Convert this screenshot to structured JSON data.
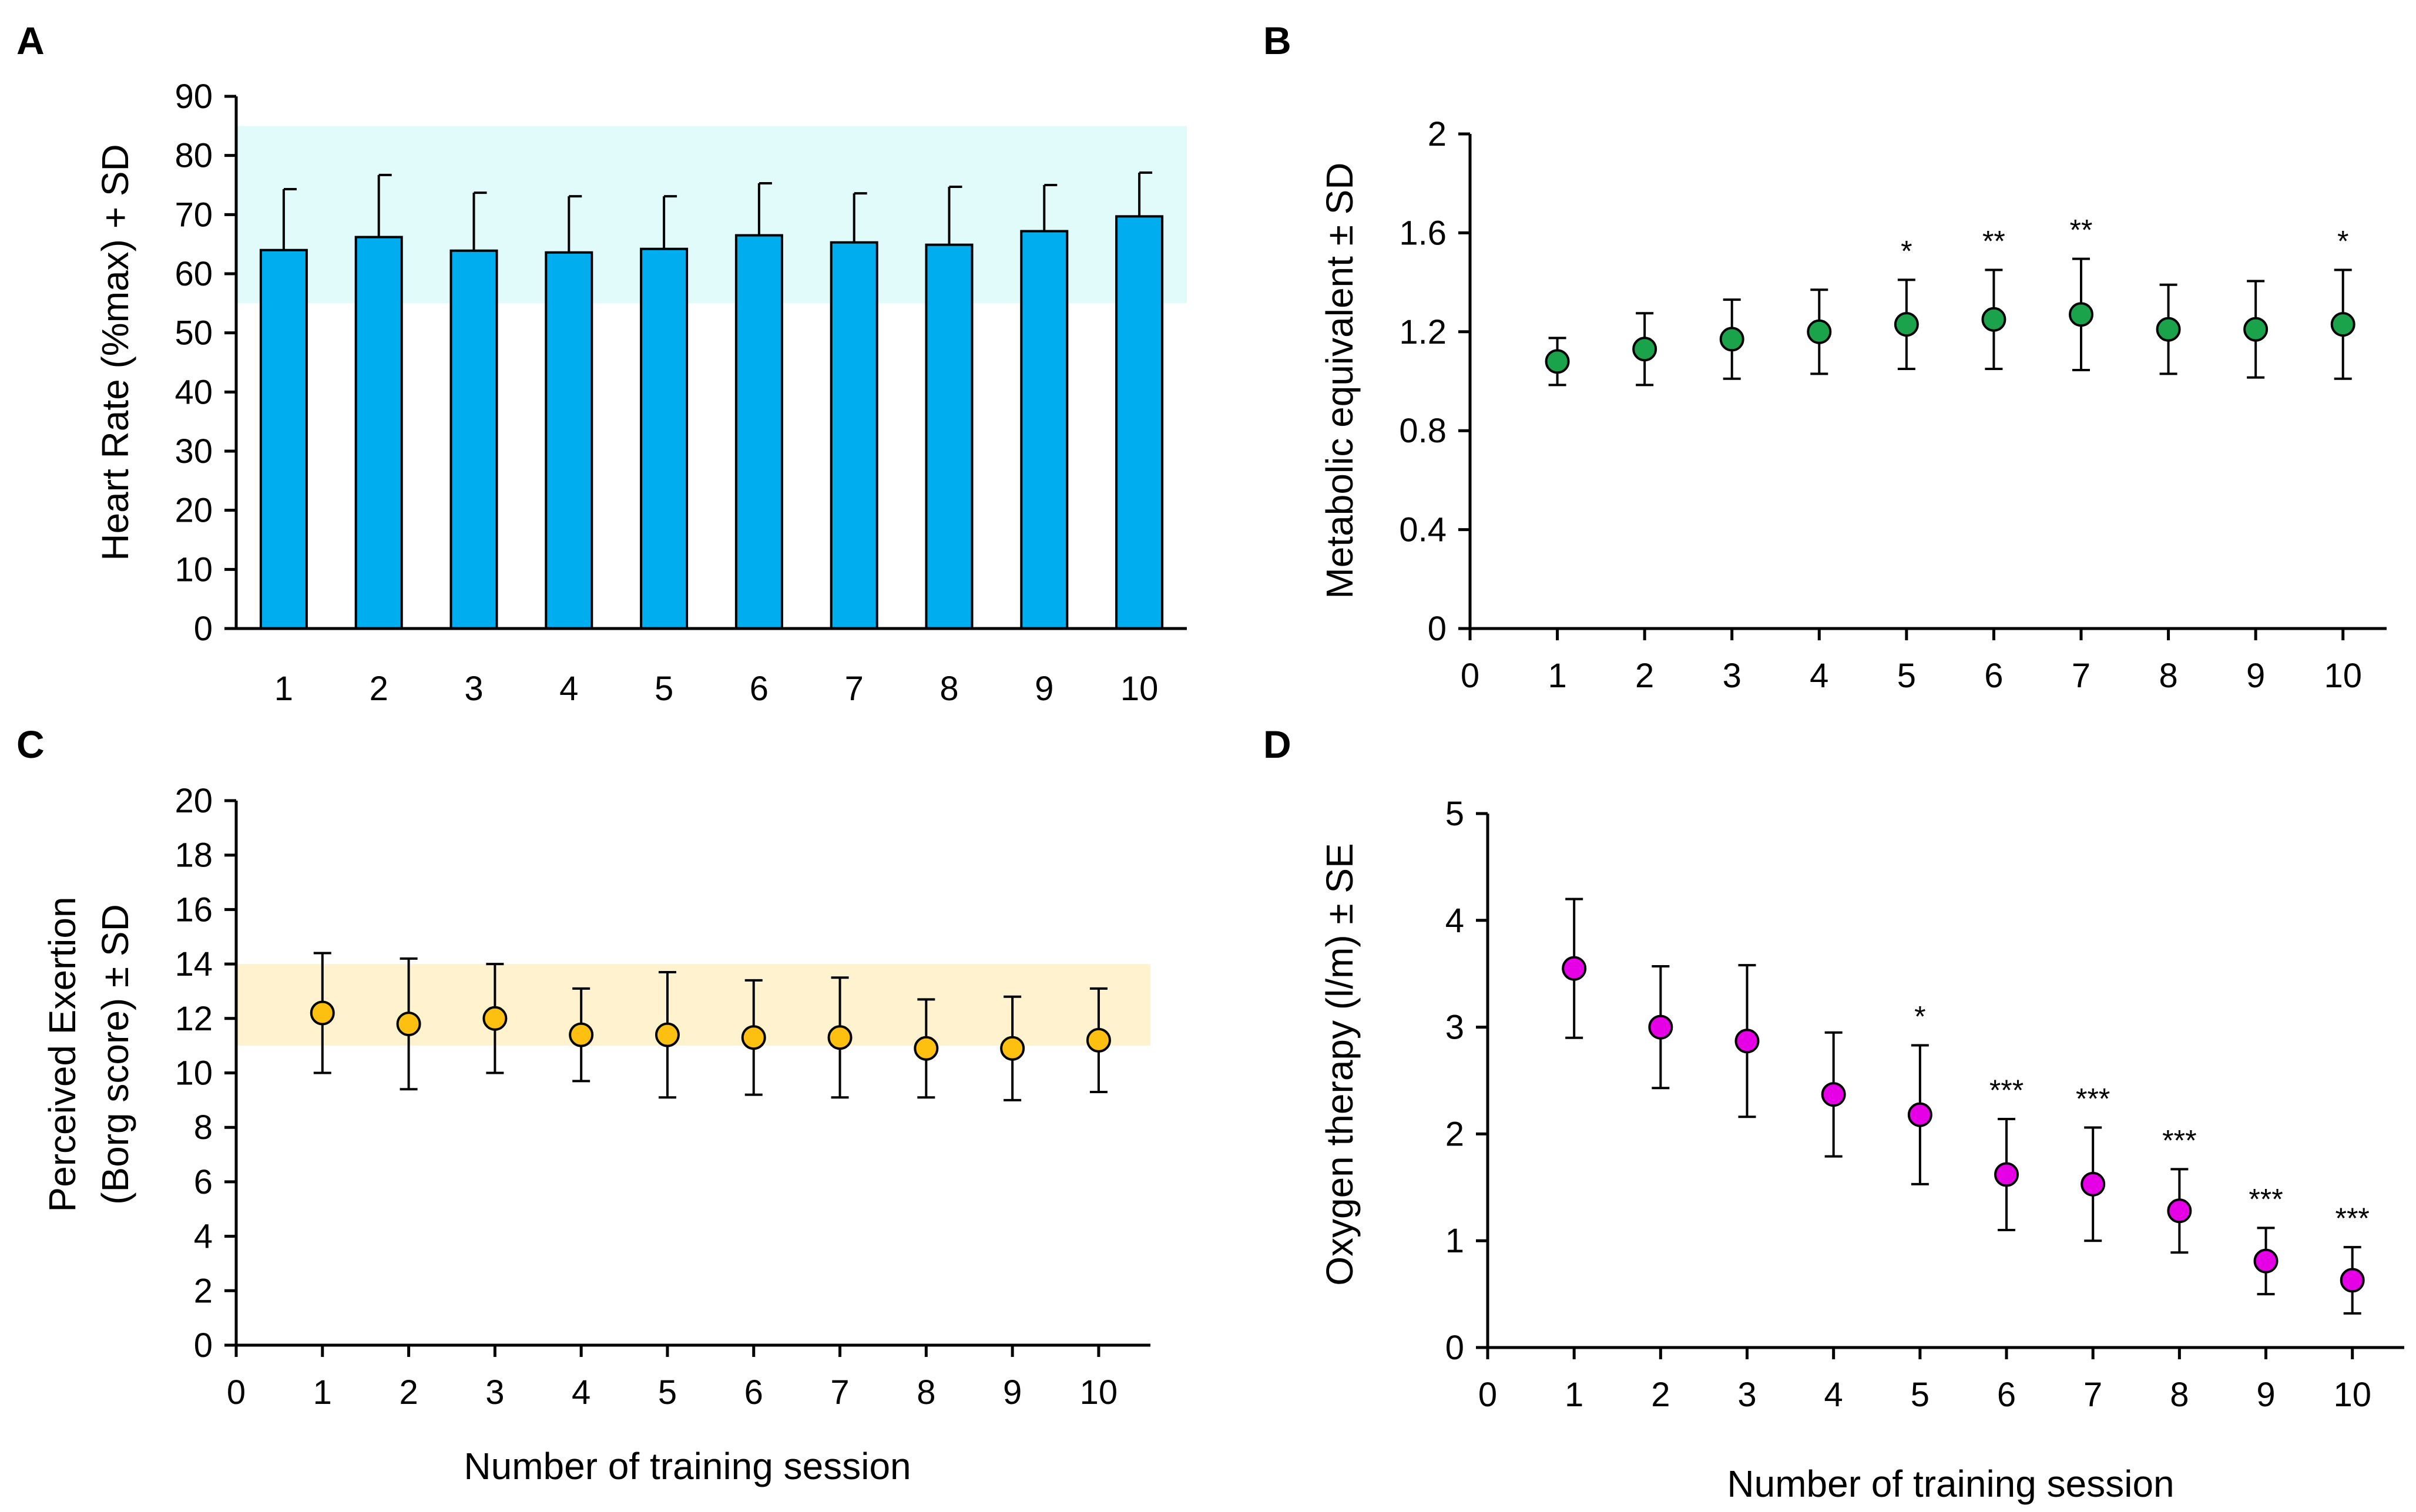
{
  "colors": {
    "bar_fill": "#00AEEF",
    "heart_band": "#E1FBFB",
    "met_marker": "#1AA34A",
    "borg_marker": "#FDC010",
    "borg_band": "#FEF2CF",
    "oxygen_marker": "#E600E6",
    "axis": "#000000"
  },
  "chart_data": [
    {
      "type": "bar",
      "panel": "A",
      "ylabel": "Heart Rate (%max) + SD",
      "xlabel": "",
      "categories": [
        "1",
        "2",
        "3",
        "4",
        "5",
        "6",
        "7",
        "8",
        "9",
        "10"
      ],
      "values": [
        64,
        66.2,
        63.9,
        63.6,
        64.2,
        66.5,
        65.3,
        64.9,
        67.2,
        69.7
      ],
      "error": [
        10.3,
        10.5,
        9.8,
        9.5,
        8.9,
        8.8,
        8.3,
        9.8,
        7.8,
        7.4
      ],
      "ylim": [
        0,
        90
      ],
      "yticks": [
        "0",
        "10",
        "20",
        "30",
        "40",
        "50",
        "60",
        "70",
        "80",
        "90"
      ],
      "band": [
        55,
        85
      ]
    },
    {
      "type": "scatter",
      "panel": "B",
      "ylabel": "Metabolic equivalent ± SD",
      "xlabel": "",
      "x": [
        1,
        2,
        3,
        4,
        5,
        6,
        7,
        8,
        9,
        10
      ],
      "values": [
        1.08,
        1.13,
        1.17,
        1.2,
        1.23,
        1.25,
        1.27,
        1.21,
        1.21,
        1.23
      ],
      "error": [
        0.095,
        0.145,
        0.16,
        0.17,
        0.18,
        0.2,
        0.225,
        0.18,
        0.195,
        0.22
      ],
      "ylim": [
        0,
        2
      ],
      "xlim": [
        0,
        10.5
      ],
      "yticks": [
        "0",
        "0.4",
        "0.8",
        "1.2",
        "1.6",
        "2"
      ],
      "xticks": [
        "0",
        "1",
        "2",
        "3",
        "4",
        "5",
        "6",
        "7",
        "8",
        "9",
        "10"
      ],
      "annotations": [
        "",
        "",
        "",
        "",
        "*",
        "**",
        "**",
        "",
        "",
        "*"
      ]
    },
    {
      "type": "scatter",
      "panel": "C",
      "ylabel_lines": [
        "Perceived Exertion",
        "(Borg score) ± SD"
      ],
      "xlabel": "Number of training session",
      "x": [
        1,
        2,
        3,
        4,
        5,
        6,
        7,
        8,
        9,
        10
      ],
      "values": [
        12.2,
        11.8,
        12.0,
        11.4,
        11.4,
        11.3,
        11.3,
        10.9,
        10.9,
        11.2
      ],
      "error": [
        2.2,
        2.4,
        2.0,
        1.7,
        2.3,
        2.1,
        2.2,
        1.8,
        1.9,
        1.9
      ],
      "ylim": [
        0,
        20
      ],
      "xlim": [
        0,
        10.6
      ],
      "yticks": [
        "0",
        "2",
        "4",
        "6",
        "8",
        "10",
        "12",
        "14",
        "16",
        "18",
        "20"
      ],
      "xticks": [
        "0",
        "1",
        "2",
        "3",
        "4",
        "5",
        "6",
        "7",
        "8",
        "9",
        "10"
      ],
      "band": [
        11,
        14
      ]
    },
    {
      "type": "scatter",
      "panel": "D",
      "ylabel": "Oxygen therapy (l/m) ± SE",
      "xlabel": "Number of training session",
      "x": [
        1,
        2,
        3,
        4,
        5,
        6,
        7,
        8,
        9,
        10
      ],
      "values": [
        3.55,
        3.0,
        2.87,
        2.37,
        2.18,
        1.62,
        1.53,
        1.28,
        0.81,
        0.63
      ],
      "error": [
        0.65,
        0.57,
        0.71,
        0.58,
        0.65,
        0.52,
        0.53,
        0.39,
        0.31,
        0.31
      ],
      "ylim": [
        0,
        5
      ],
      "xlim": [
        0,
        10.6
      ],
      "yticks": [
        "0",
        "1",
        "2",
        "3",
        "4",
        "5"
      ],
      "xticks": [
        "0",
        "1",
        "2",
        "3",
        "4",
        "5",
        "6",
        "7",
        "8",
        "9",
        "10"
      ],
      "annotations": [
        "",
        "",
        "",
        "",
        "*",
        "***",
        "***",
        "***",
        "***",
        "***"
      ]
    }
  ]
}
